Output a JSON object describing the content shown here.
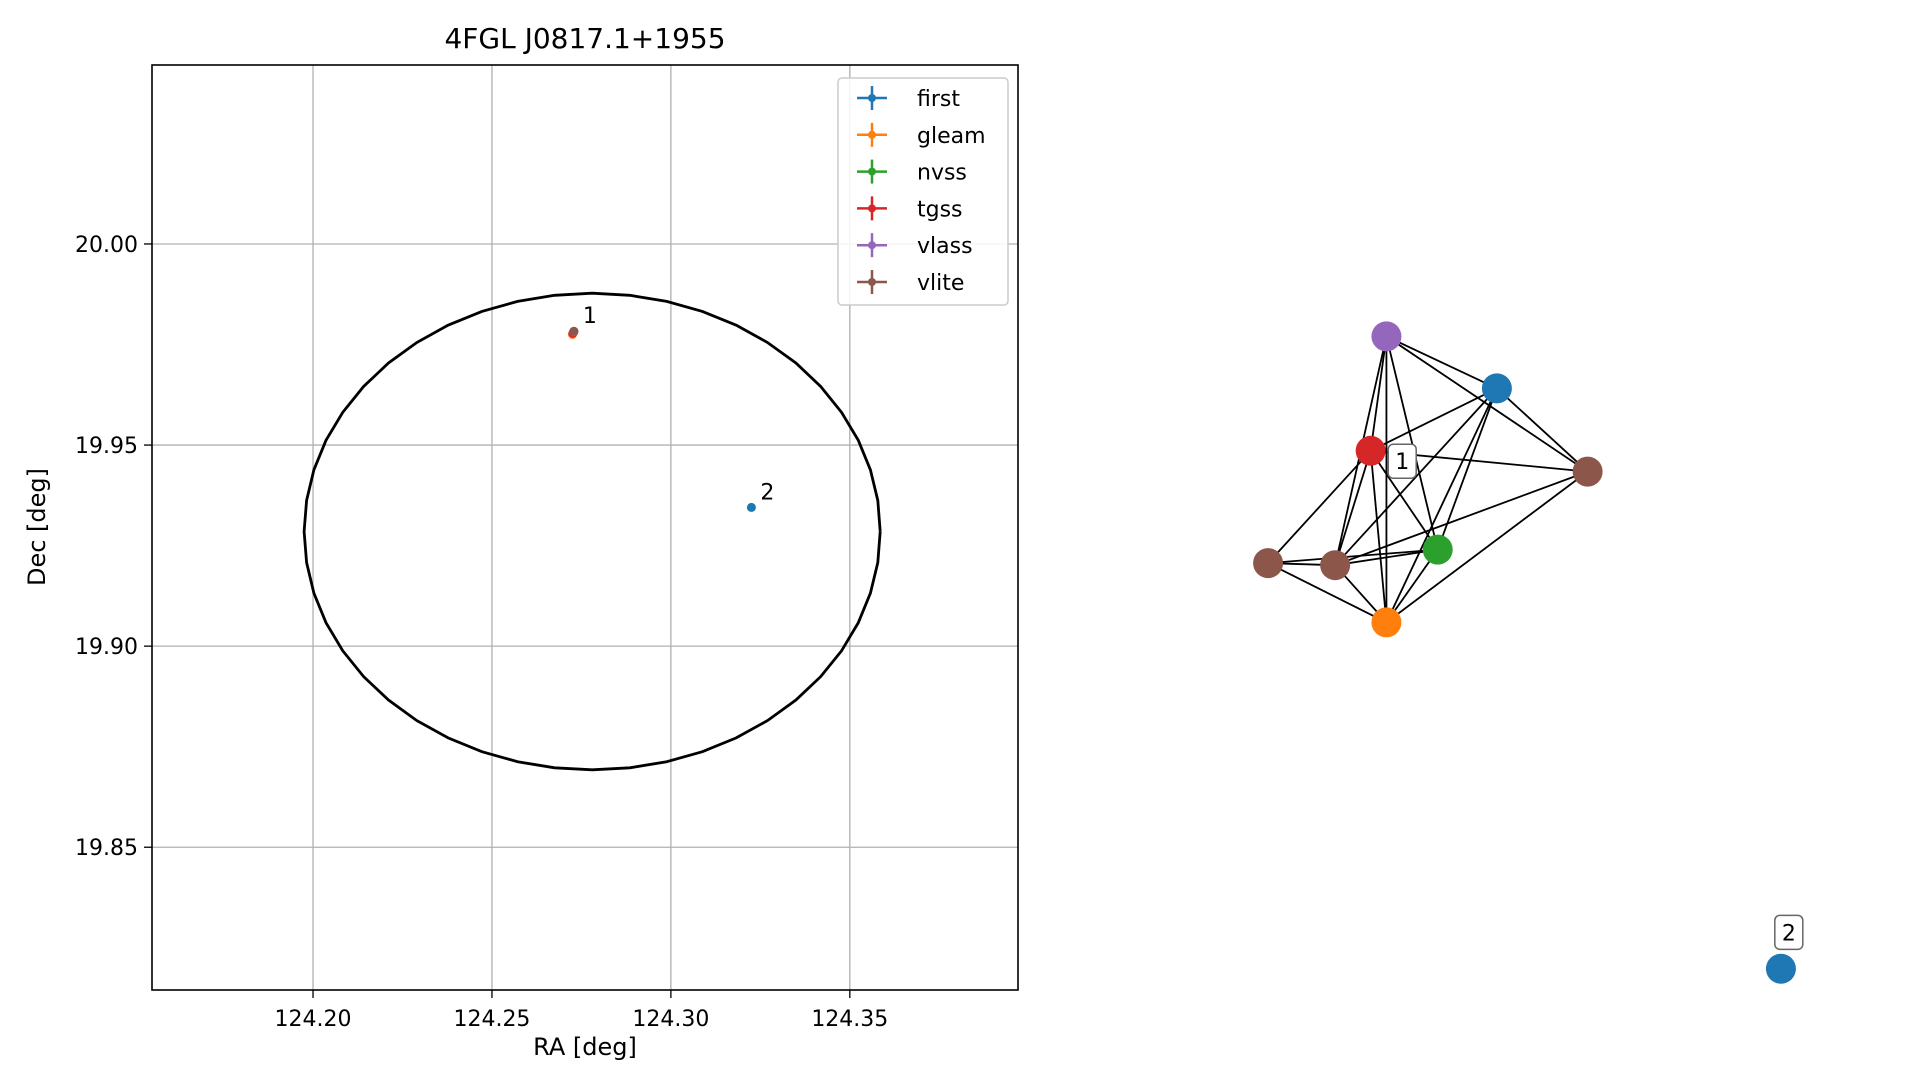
{
  "colors": {
    "first": "#1f77b4",
    "gleam": "#ff7f0e",
    "nvss": "#2ca02c",
    "tgss": "#d62728",
    "vlass": "#9467bd",
    "vlite": "#8c564b",
    "grid": "#b0b0b0",
    "axes": "#000000"
  },
  "chart_data": [
    {
      "type": "scatter",
      "title": "4FGL J0817.1+1955",
      "xlabel": "RA [deg]",
      "ylabel": "Dec [deg]",
      "xlim": [
        124.155,
        124.397
      ],
      "ylim": [
        19.8145,
        20.0445
      ],
      "xticks": [
        124.2,
        124.25,
        124.3,
        124.35
      ],
      "xtick_labels": [
        "124.20",
        "124.25",
        "124.30",
        "124.35"
      ],
      "yticks": [
        19.85,
        19.9,
        19.95,
        20.0
      ],
      "ytick_labels": [
        "19.85",
        "19.90",
        "19.95",
        "20.00"
      ],
      "grid": true,
      "legend_position": "top-right",
      "series": [
        {
          "name": "first",
          "color_key": "first",
          "points": [
            [
              124.3225,
              19.9345
            ]
          ]
        },
        {
          "name": "gleam",
          "color_key": "gleam",
          "points": [
            [
              124.2725,
              19.9775
            ]
          ]
        },
        {
          "name": "nvss",
          "color_key": "nvss",
          "points": [
            [
              124.2728,
              19.978
            ]
          ]
        },
        {
          "name": "tgss",
          "color_key": "tgss",
          "points": [
            [
              124.2726,
              19.9778
            ]
          ]
        },
        {
          "name": "vlass",
          "color_key": "vlass",
          "points": [
            [
              124.2729,
              19.9782
            ]
          ]
        },
        {
          "name": "vlite",
          "color_key": "vlite",
          "points": [
            [
              124.2729,
              19.9783
            ]
          ]
        }
      ],
      "ellipse": {
        "center": [
          124.278,
          19.9285
        ],
        "width_ra": 0.161,
        "height_dec": 0.1185,
        "color": "#000000"
      },
      "annotations": [
        {
          "text": "1",
          "at": [
            124.2729,
            19.9783
          ]
        },
        {
          "text": "2",
          "at": [
            124.3225,
            19.9345
          ]
        }
      ]
    },
    {
      "type": "network",
      "nodes": [
        {
          "id": "vlass",
          "color_key": "vlass",
          "pos": [
            0.325,
            0.715
          ]
        },
        {
          "id": "first",
          "color_key": "first",
          "pos": [
            0.465,
            0.665
          ]
        },
        {
          "id": "tgss",
          "color_key": "tgss",
          "pos": [
            0.305,
            0.605
          ]
        },
        {
          "id": "vlite-r",
          "color_key": "vlite",
          "pos": [
            0.58,
            0.585
          ]
        },
        {
          "id": "nvss",
          "color_key": "nvss",
          "pos": [
            0.39,
            0.51
          ]
        },
        {
          "id": "vlite-l",
          "color_key": "vlite",
          "pos": [
            0.175,
            0.497
          ]
        },
        {
          "id": "vlite-c",
          "color_key": "vlite",
          "pos": [
            0.26,
            0.495
          ]
        },
        {
          "id": "gleam",
          "color_key": "gleam",
          "pos": [
            0.325,
            0.44
          ]
        },
        {
          "id": "first-2",
          "color_key": "first",
          "pos": [
            0.825,
            0.107
          ]
        }
      ],
      "edges": [
        [
          "vlass",
          "first"
        ],
        [
          "vlass",
          "tgss"
        ],
        [
          "vlass",
          "vlite-r"
        ],
        [
          "vlass",
          "nvss"
        ],
        [
          "vlass",
          "vlite-c"
        ],
        [
          "vlass",
          "gleam"
        ],
        [
          "first",
          "tgss"
        ],
        [
          "first",
          "vlite-r"
        ],
        [
          "first",
          "nvss"
        ],
        [
          "first",
          "vlite-c"
        ],
        [
          "first",
          "gleam"
        ],
        [
          "tgss",
          "vlite-r"
        ],
        [
          "tgss",
          "nvss"
        ],
        [
          "tgss",
          "vlite-l"
        ],
        [
          "tgss",
          "vlite-c"
        ],
        [
          "tgss",
          "gleam"
        ],
        [
          "vlite-r",
          "vlite-c"
        ],
        [
          "vlite-r",
          "gleam"
        ],
        [
          "nvss",
          "vlite-c"
        ],
        [
          "nvss",
          "gleam"
        ],
        [
          "vlite-l",
          "vlite-c"
        ],
        [
          "vlite-l",
          "gleam"
        ],
        [
          "vlite-l",
          "nvss"
        ],
        [
          "vlite-c",
          "gleam"
        ]
      ],
      "labels": [
        {
          "text": "1",
          "at": [
            0.345,
            0.595
          ]
        },
        {
          "text": "2",
          "at": [
            0.835,
            0.142
          ]
        }
      ]
    }
  ]
}
